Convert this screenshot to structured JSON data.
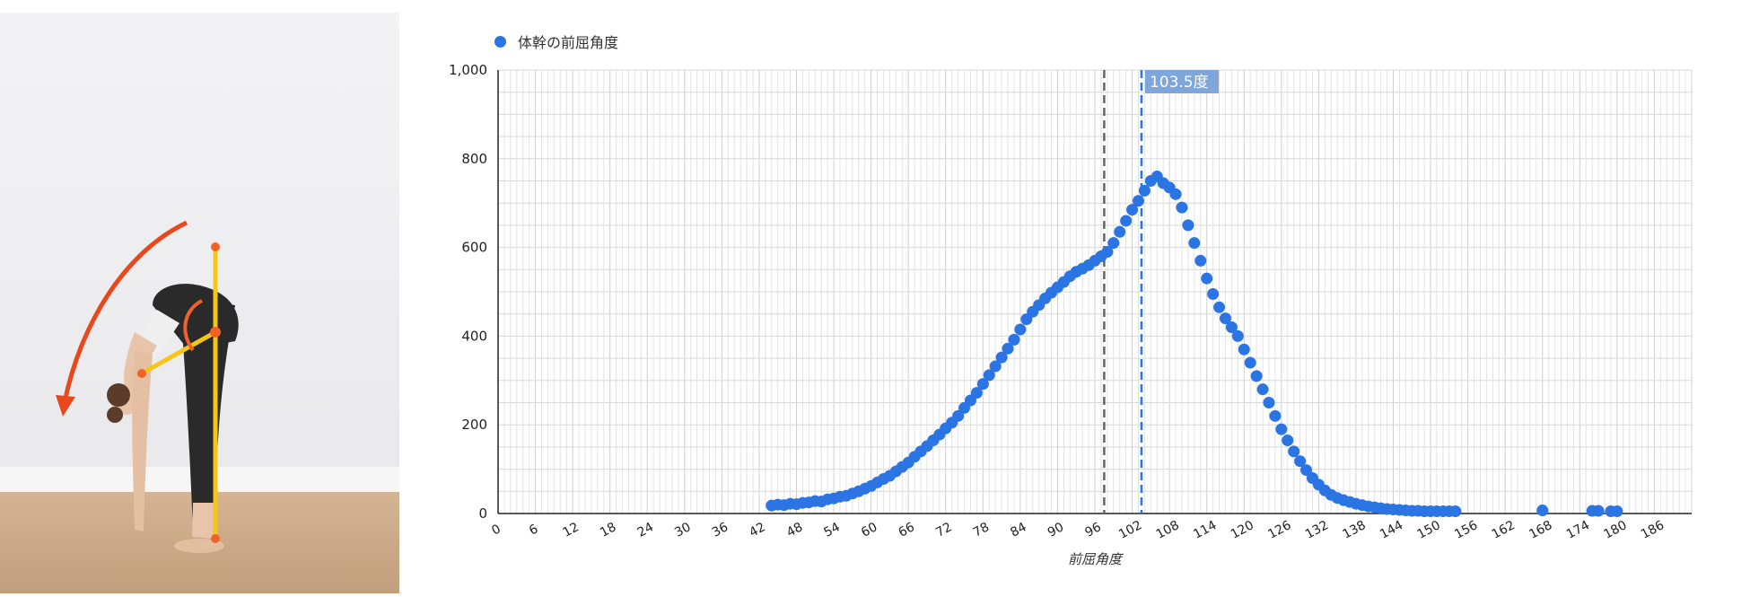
{
  "photo": {
    "description_icon": "forward-bend-figure",
    "accent_colors": {
      "arrow": "#e8481c",
      "skeleton": "#f5c518",
      "joint": "#f0622a"
    }
  },
  "legend": {
    "label": "体幹の前屈角度",
    "color": "#2b74e4"
  },
  "chart_data": {
    "type": "scatter",
    "title": "",
    "xlabel": "前屈角度",
    "ylabel": "",
    "xlim": [
      0,
      192
    ],
    "ylim": [
      0,
      1000
    ],
    "x_ticks": [
      0,
      6,
      12,
      18,
      24,
      30,
      36,
      42,
      48,
      54,
      60,
      66,
      72,
      78,
      84,
      90,
      96,
      102,
      108,
      114,
      120,
      126,
      132,
      138,
      144,
      150,
      156,
      162,
      168,
      174,
      180,
      186
    ],
    "y_ticks": [
      0,
      200,
      400,
      600,
      800,
      1000
    ],
    "y_tick_labels": [
      "0",
      "200",
      "400",
      "600",
      "800",
      "1,000"
    ],
    "grid": true,
    "legend_position": "top-left",
    "series": [
      {
        "name": "体幹の前屈角度",
        "color": "#2b74e4",
        "x": [
          44,
          45,
          46,
          47,
          48,
          49,
          50,
          51,
          52,
          53,
          54,
          55,
          56,
          57,
          58,
          59,
          60,
          61,
          62,
          63,
          64,
          65,
          66,
          67,
          68,
          69,
          70,
          71,
          72,
          73,
          74,
          75,
          76,
          77,
          78,
          79,
          80,
          81,
          82,
          83,
          84,
          85,
          86,
          87,
          88,
          89,
          90,
          91,
          92,
          93,
          94,
          95,
          96,
          97,
          98,
          99,
          100,
          101,
          102,
          103,
          104,
          105,
          106,
          107,
          108,
          109,
          110,
          111,
          112,
          113,
          114,
          115,
          116,
          117,
          118,
          119,
          120,
          121,
          122,
          123,
          124,
          125,
          126,
          127,
          128,
          129,
          130,
          131,
          132,
          133,
          134,
          135,
          136,
          137,
          138,
          139,
          140,
          141,
          142,
          143,
          144,
          145,
          146,
          147,
          148,
          149,
          150,
          151,
          152,
          153,
          154,
          168,
          176,
          177,
          179,
          180
        ],
        "y": [
          18,
          20,
          19,
          22,
          21,
          24,
          25,
          28,
          27,
          32,
          34,
          38,
          40,
          45,
          50,
          56,
          62,
          70,
          78,
          85,
          95,
          105,
          115,
          128,
          140,
          152,
          165,
          178,
          192,
          205,
          220,
          238,
          255,
          272,
          292,
          312,
          332,
          352,
          372,
          392,
          415,
          438,
          455,
          470,
          485,
          498,
          510,
          522,
          535,
          545,
          552,
          560,
          570,
          580,
          590,
          610,
          635,
          660,
          685,
          705,
          728,
          750,
          760,
          745,
          735,
          720,
          690,
          650,
          610,
          570,
          530,
          495,
          465,
          440,
          420,
          400,
          370,
          340,
          310,
          280,
          250,
          220,
          190,
          165,
          140,
          118,
          98,
          80,
          65,
          52,
          42,
          35,
          30,
          26,
          22,
          19,
          16,
          14,
          12,
          10,
          9,
          8,
          7,
          6,
          6,
          5,
          5,
          5,
          5,
          5,
          5,
          7,
          6,
          6,
          5,
          5
        ]
      }
    ],
    "reference_lines": [
      {
        "x": 97.5,
        "style": "dashed",
        "color": "#666666"
      },
      {
        "x": 103.5,
        "style": "dashed",
        "color": "#2b74e4",
        "label": "103.5度"
      }
    ]
  }
}
